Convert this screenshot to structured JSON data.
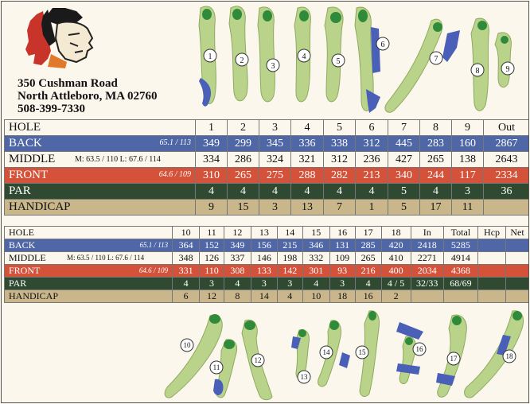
{
  "address": {
    "line1": "350 Cushman Road",
    "line2": "North Attleboro, MA 02760",
    "phone": "508-399-7330"
  },
  "colors": {
    "back": "#4f67a6",
    "front": "#d4523a",
    "par": "#2f4a30",
    "handicap": "#c9b68a",
    "fairway": "#b9d48a",
    "green": "#2f8a3a",
    "water": "#4a5fb8"
  },
  "front_nine": {
    "hole_label": "HOLE",
    "holes": [
      "1",
      "2",
      "3",
      "4",
      "5",
      "6",
      "7",
      "8",
      "9",
      "Out"
    ],
    "back": {
      "label": "BACK",
      "rating": "65.1 / 113",
      "values": [
        "349",
        "299",
        "345",
        "336",
        "338",
        "312",
        "445",
        "283",
        "160",
        "2867"
      ]
    },
    "middle": {
      "label": "MIDDLE",
      "rating": "M: 63.5 / 110  L: 67.6 / 114",
      "values": [
        "334",
        "286",
        "324",
        "321",
        "312",
        "236",
        "427",
        "265",
        "138",
        "2643"
      ]
    },
    "front": {
      "label": "FRONT",
      "rating": "64.6 / 109",
      "values": [
        "310",
        "265",
        "275",
        "288",
        "282",
        "213",
        "340",
        "244",
        "117",
        "2334"
      ]
    },
    "par": {
      "label": "PAR",
      "values": [
        "4",
        "4",
        "4",
        "4",
        "4",
        "4",
        "5",
        "4",
        "3",
        "36"
      ]
    },
    "handicap": {
      "label": "HANDICAP",
      "values": [
        "9",
        "15",
        "3",
        "13",
        "7",
        "1",
        "5",
        "17",
        "11",
        ""
      ]
    }
  },
  "back_nine": {
    "hole_label": "HOLE",
    "holes": [
      "10",
      "11",
      "12",
      "13",
      "14",
      "15",
      "16",
      "17",
      "18",
      "In",
      "Total",
      "Hcp",
      "Net"
    ],
    "back": {
      "label": "BACK",
      "rating": "65.1 / 113",
      "values": [
        "364",
        "152",
        "349",
        "156",
        "215",
        "346",
        "131",
        "285",
        "420",
        "2418",
        "5285",
        "",
        ""
      ]
    },
    "middle": {
      "label": "MIDDLE",
      "rating": "M: 63.5 / 110  L: 67.6 / 114",
      "values": [
        "348",
        "126",
        "337",
        "146",
        "198",
        "332",
        "109",
        "265",
        "410",
        "2271",
        "4914",
        "",
        ""
      ]
    },
    "front": {
      "label": "FRONT",
      "rating": "64.6 / 109",
      "values": [
        "331",
        "110",
        "308",
        "133",
        "142",
        "301",
        "93",
        "216",
        "400",
        "2034",
        "4368",
        "",
        ""
      ]
    },
    "par": {
      "label": "PAR",
      "values": [
        "4",
        "3",
        "4",
        "3",
        "3",
        "4",
        "3",
        "4",
        "4 / 5",
        "32/33",
        "68/69",
        "",
        ""
      ]
    },
    "handicap": {
      "label": "HANDICAP",
      "values": [
        "6",
        "12",
        "8",
        "14",
        "4",
        "10",
        "18",
        "16",
        "2",
        "",
        "",
        "",
        ""
      ]
    }
  },
  "hole_markers_top": [
    "1",
    "2",
    "3",
    "4",
    "5",
    "6",
    "7",
    "8",
    "9"
  ],
  "hole_markers_bottom": [
    "10",
    "11",
    "12",
    "13",
    "14",
    "15",
    "16",
    "17",
    "18"
  ]
}
